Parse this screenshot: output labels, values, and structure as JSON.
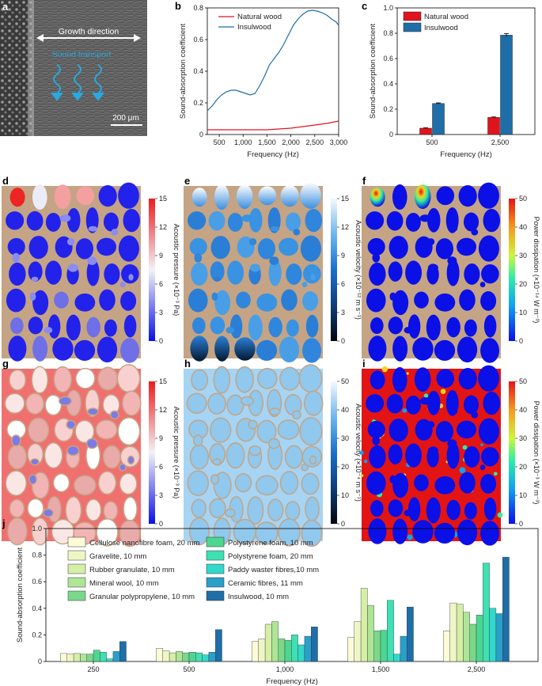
{
  "panels": {
    "a": {
      "label": "a",
      "growth_direction": "Growth direction",
      "sound_transport": "Sound transport",
      "scale_bar": "200 μm"
    },
    "b": {
      "label": "b"
    },
    "c": {
      "label": "c"
    },
    "d": {
      "label": "d"
    },
    "e": {
      "label": "e"
    },
    "f": {
      "label": "f"
    },
    "g": {
      "label": "g"
    },
    "h": {
      "label": "h"
    },
    "i": {
      "label": "i"
    },
    "j": {
      "label": "j"
    }
  },
  "colorbars": {
    "d": {
      "title": "Acoustic pressure (×10⁻³ Pa)",
      "ticks": [
        "15",
        "12",
        "9",
        "6",
        "3",
        "0"
      ]
    },
    "e": {
      "title": "Acoustic velocity (×10⁻¹² m s⁻¹)",
      "ticks": [
        "15",
        "12",
        "9",
        "6",
        "3",
        "0"
      ]
    },
    "f": {
      "title": "Power dissipation (×10⁻¹⁴ W m⁻³)",
      "ticks": [
        "50",
        "40",
        "30",
        "20",
        "10",
        "0"
      ]
    },
    "g": {
      "title": "Acoustic pressure (×10⁻³ Pa)",
      "ticks": [
        "15",
        "12",
        "9",
        "6",
        "3",
        "0"
      ]
    },
    "h": {
      "title": "Acoustic velocity (×10⁻⁴ m s⁻¹)",
      "ticks": [
        "50",
        "40",
        "30",
        "20",
        "10",
        "0"
      ]
    },
    "i": {
      "title": "Power dissipation (×10⁻³ W m⁻³)",
      "ticks": [
        "50",
        "40",
        "30",
        "20",
        "10",
        "0"
      ]
    }
  },
  "colors": {
    "natural_wood": "#e0141e",
    "insulwood": "#1f6ea8",
    "wood_matrix": "#c4a484",
    "j_palette": [
      "#fcfbd8",
      "#eef6c6",
      "#d5efa6",
      "#aee597",
      "#7bd88a",
      "#4dd690",
      "#3ee0b4",
      "#32d8cc",
      "#2a9fc9",
      "#1f6ea8"
    ]
  },
  "chart_data": [
    {
      "id": "b",
      "type": "line",
      "title": "",
      "xlabel": "Frequency (Hz)",
      "ylabel": "Sound-absorption coefficient",
      "xlim": [
        250,
        3000
      ],
      "ylim": [
        0,
        0.8
      ],
      "x_ticks": [
        "500",
        "1,000",
        "1,500",
        "2,000",
        "2,500",
        "3,000"
      ],
      "y_ticks": [
        "0",
        "0.2",
        "0.4",
        "0.6",
        "0.8"
      ],
      "series": [
        {
          "name": "Natural wood",
          "x": [
            250,
            500,
            750,
            1000,
            1250,
            1500,
            1750,
            2000,
            2250,
            2500,
            2750,
            3000
          ],
          "values": [
            0.03,
            0.03,
            0.03,
            0.03,
            0.03,
            0.03,
            0.035,
            0.04,
            0.05,
            0.06,
            0.07,
            0.085
          ]
        },
        {
          "name": "Insulwood",
          "x": [
            250,
            350,
            450,
            550,
            650,
            750,
            850,
            950,
            1050,
            1150,
            1250,
            1350,
            1450,
            1550,
            1650,
            1750,
            1850,
            1950,
            2050,
            2150,
            2250,
            2350,
            2450,
            2550,
            2650,
            2750,
            2850,
            2950,
            3000
          ],
          "values": [
            0.15,
            0.18,
            0.22,
            0.25,
            0.27,
            0.28,
            0.28,
            0.27,
            0.26,
            0.25,
            0.26,
            0.31,
            0.37,
            0.44,
            0.48,
            0.52,
            0.57,
            0.63,
            0.69,
            0.73,
            0.76,
            0.78,
            0.785,
            0.78,
            0.77,
            0.755,
            0.73,
            0.71,
            0.69
          ]
        }
      ]
    },
    {
      "id": "c",
      "type": "bar",
      "title": "",
      "xlabel": "Frequency (Hz)",
      "ylabel": "Sound-absorption coefficient",
      "ylim": [
        0,
        1.0
      ],
      "y_ticks": [
        "0",
        "0.2",
        "0.4",
        "0.6",
        "0.8",
        "1.0"
      ],
      "categories": [
        "500",
        "2,500"
      ],
      "series": [
        {
          "name": "Natural wood",
          "values": [
            0.05,
            0.135
          ],
          "errors": [
            0.003,
            0.004
          ]
        },
        {
          "name": "Insulwood",
          "values": [
            0.245,
            0.785
          ],
          "errors": [
            0.005,
            0.012
          ]
        }
      ]
    },
    {
      "id": "j",
      "type": "bar",
      "title": "",
      "xlabel": "Frequency (Hz)",
      "ylabel": "Sound-absorption coefficient",
      "ylim": [
        0,
        1.0
      ],
      "y_ticks": [
        "0",
        "0.2",
        "0.4",
        "0.6",
        "0.8",
        "1.0"
      ],
      "categories": [
        "250",
        "500",
        "1,000",
        "1,500",
        "2,500"
      ],
      "series": [
        {
          "name": "Cellulose nanofibre foam, 20 mm",
          "values": [
            0.06,
            0.1,
            0.15,
            0.18,
            0.23
          ]
        },
        {
          "name": "Gravelite, 10 mm",
          "values": [
            0.055,
            0.08,
            0.17,
            0.3,
            0.44
          ]
        },
        {
          "name": "Rubber granulate, 10 mm",
          "values": [
            0.06,
            0.065,
            0.28,
            0.55,
            0.43
          ]
        },
        {
          "name": "Mineral wool, 10 mm",
          "values": [
            0.055,
            0.075,
            0.3,
            0.42,
            0.37
          ]
        },
        {
          "name": "Granular polypropylene, 10 mm",
          "values": [
            0.055,
            0.065,
            0.17,
            0.23,
            0.28
          ]
        },
        {
          "name": "Polystyrene foam, 10 mm",
          "values": [
            0.085,
            0.07,
            0.16,
            0.235,
            0.35
          ]
        },
        {
          "name": "Polystyrene foam, 20 mm",
          "values": [
            0.07,
            0.065,
            0.2,
            0.46,
            0.74
          ]
        },
        {
          "name": "Paddy waster fibres,10 mm",
          "values": [
            0.02,
            0.05,
            0.125,
            0.055,
            0.4
          ]
        },
        {
          "name": "Ceramic fibres, 11 mm",
          "values": [
            0.075,
            0.07,
            0.19,
            0.19,
            0.36
          ]
        },
        {
          "name": "Insulwood, 10 mm",
          "values": [
            0.15,
            0.24,
            0.26,
            0.41,
            0.785
          ]
        }
      ]
    }
  ]
}
